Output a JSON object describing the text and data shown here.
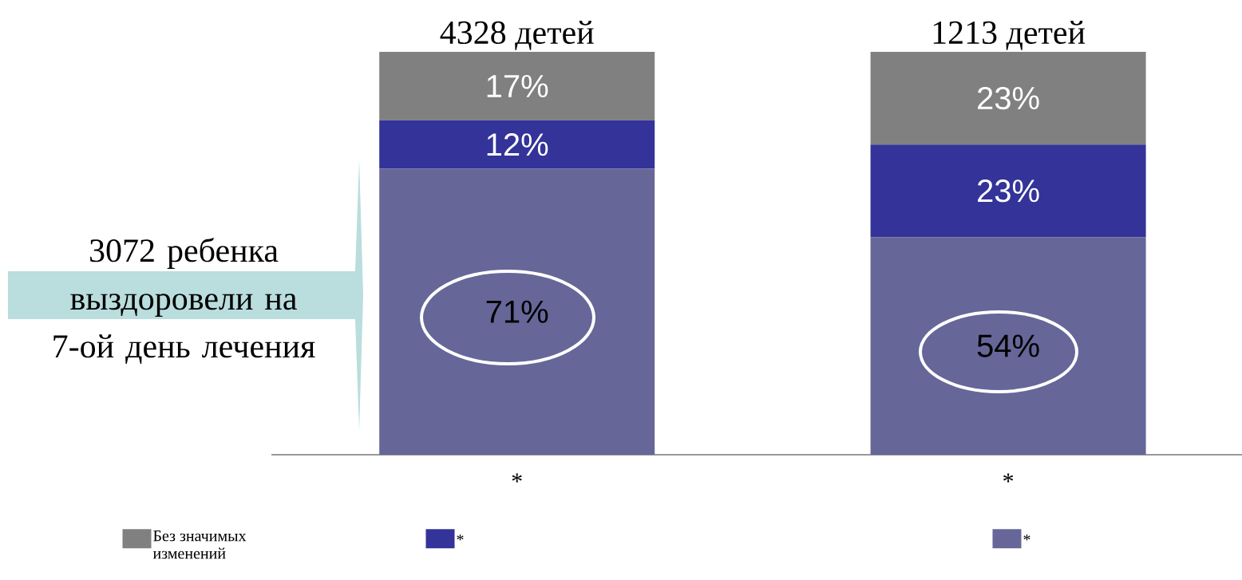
{
  "chart_data": {
    "type": "bar",
    "stacked": true,
    "categories": [
      "*",
      "*"
    ],
    "series": [
      {
        "name": "*",
        "color": "#666699",
        "values": [
          71,
          54
        ],
        "value_labels": [
          "71%",
          "54%"
        ]
      },
      {
        "name": "*",
        "color": "#333399",
        "values": [
          12,
          23
        ],
        "value_labels": [
          "12%",
          "23%"
        ]
      },
      {
        "name": "Без значимых изменений",
        "color": "#808080",
        "values": [
          17,
          23
        ],
        "value_labels": [
          "17%",
          "23%"
        ]
      }
    ],
    "annotations": [
      "4328 детей",
      "1213 детей",
      "3072 ребенка выздоровели на 7-ой день лечения"
    ],
    "legend": "bottom"
  }
}
